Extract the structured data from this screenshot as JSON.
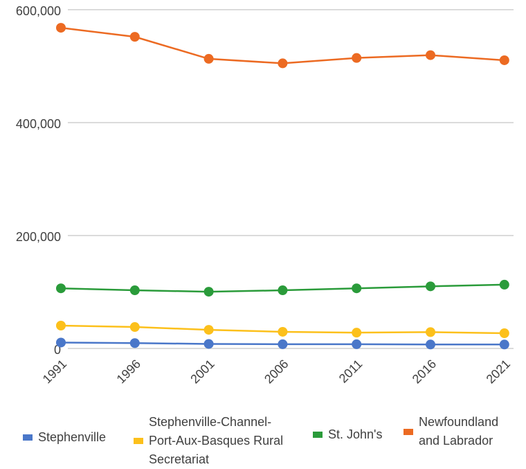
{
  "chart_data": {
    "type": "line",
    "categories": [
      "1991",
      "1996",
      "2001",
      "2006",
      "2011",
      "2016",
      "2021"
    ],
    "series": [
      {
        "name": "Stephenville",
        "color": "#4a77c9",
        "values": [
          10500,
          9500,
          8000,
          7500,
          7500,
          7000,
          7000
        ]
      },
      {
        "name": "Stephenville-Channel-Port-Aux-Basques Rural Secretariat",
        "color": "#fcc01b",
        "values": [
          40500,
          38000,
          33000,
          29500,
          28000,
          29000,
          27000
        ]
      },
      {
        "name": "St. John's",
        "color": "#2a9b3a",
        "values": [
          106500,
          103000,
          100500,
          103000,
          106500,
          110000,
          113000
        ]
      },
      {
        "name": "Newfoundland and Labrador",
        "color": "#ec6a22",
        "values": [
          568000,
          552000,
          513000,
          505000,
          514500,
          519500,
          510500
        ]
      }
    ],
    "ylim": [
      0,
      600000
    ],
    "yticks": [
      0,
      {
        "value": 200000,
        "label": "200,000"
      },
      {
        "value": 400000,
        "label": "400,000"
      },
      {
        "value": 600000,
        "label": "600,000"
      }
    ],
    "grid": true
  }
}
